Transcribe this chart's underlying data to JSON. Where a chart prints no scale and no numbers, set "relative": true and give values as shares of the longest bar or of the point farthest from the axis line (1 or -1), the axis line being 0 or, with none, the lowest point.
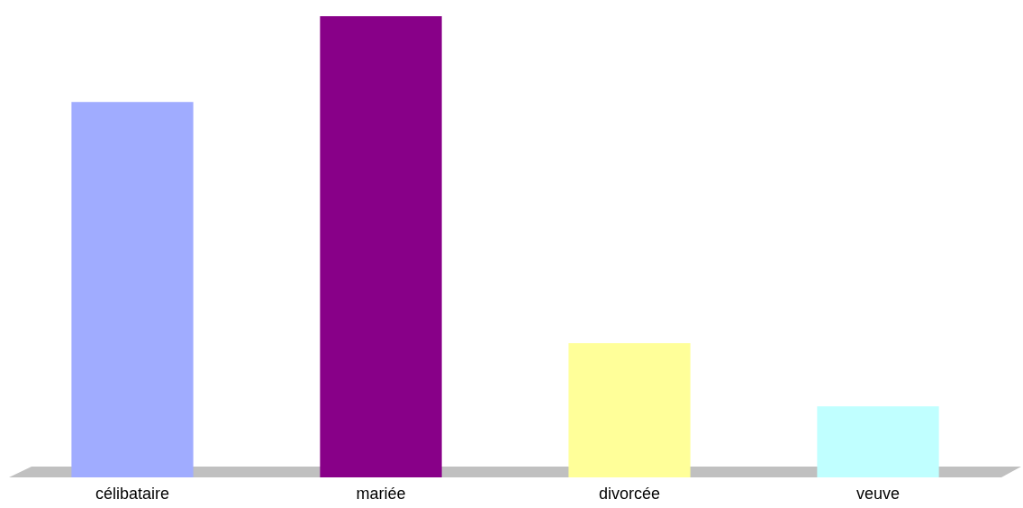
{
  "chart_data": {
    "type": "bar",
    "relative": true,
    "categories": [
      "célibataire",
      "mariée",
      "divorcée",
      "veuve"
    ],
    "values": [
      0.814,
      1,
      0.291,
      0.154
    ],
    "colors": [
      "#a0acff",
      "#880088",
      "#ffff99",
      "#c0ffff"
    ]
  }
}
